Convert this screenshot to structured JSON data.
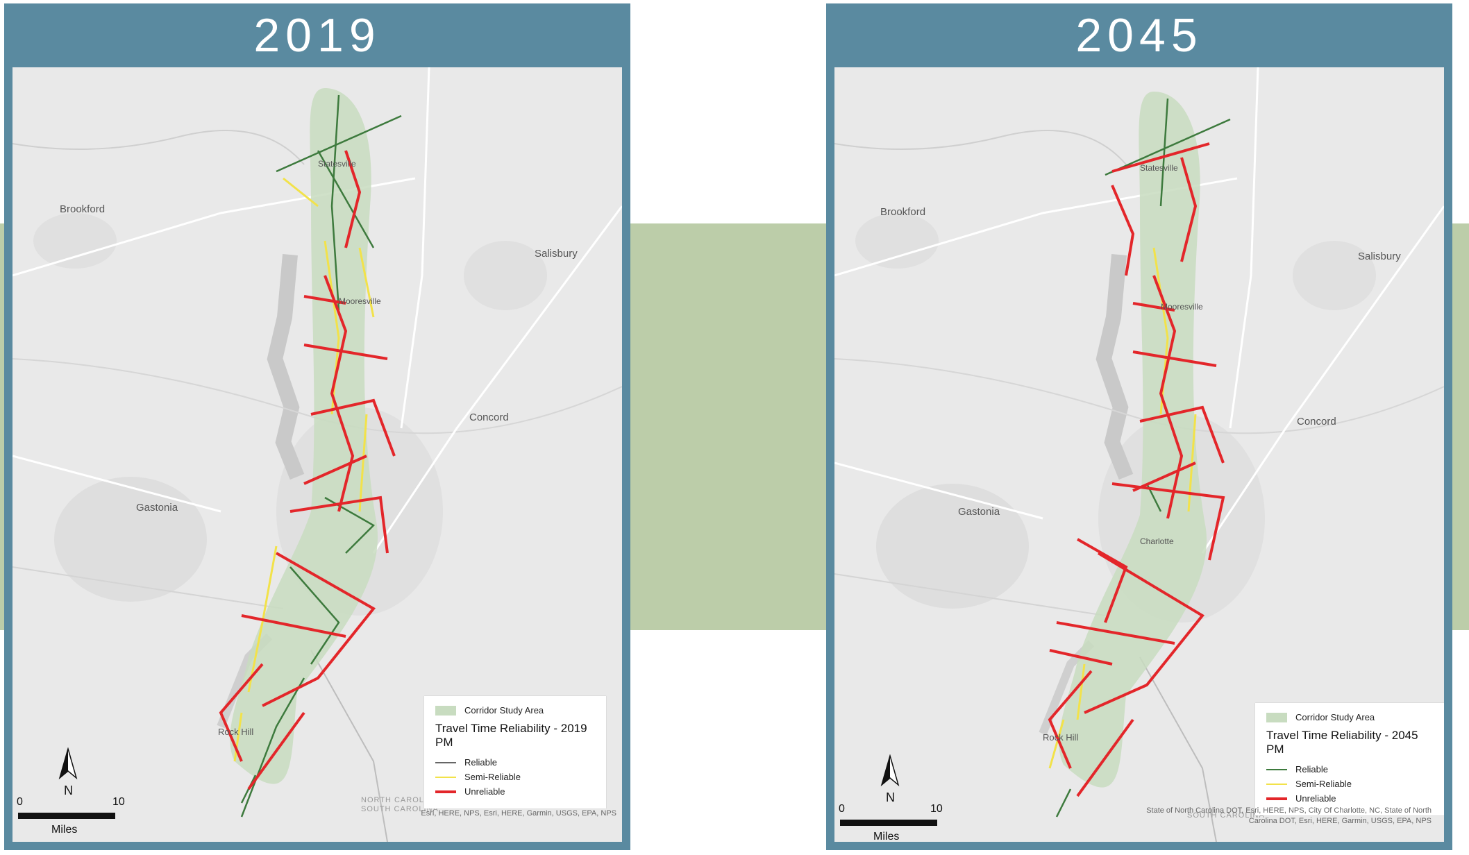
{
  "colors": {
    "frame": "#5a8aa0",
    "connector": "#bccda9",
    "corridor": "#c8dcc0",
    "reliable": "#3d7a3d",
    "semi_reliable": "#f2e24a",
    "unreliable": "#e3262a"
  },
  "panels": [
    {
      "title": "2019",
      "cities": {
        "brookford": "Brookford",
        "salisbury": "Salisbury",
        "concord": "Concord",
        "gastonia": "Gastonia",
        "statesville": "Statesville",
        "mooresville": "Mooresville",
        "rock_hill": "Rock Hill"
      },
      "legend": {
        "area_label": "Corridor Study Area",
        "title": "Travel Time Reliability - 2019 PM",
        "reliable": "Reliable",
        "semi_reliable": "Semi-Reliable",
        "unreliable": "Unreliable"
      },
      "north_label": "N",
      "scale": {
        "zero": "0",
        "ten": "10",
        "unit": "Miles"
      },
      "border": {
        "nc": "NORTH CAROLINA",
        "sc": "SOUTH CAROLINA"
      },
      "attribution": "Esri, HERE, NPS, Esri, HERE, Garmin, USGS, EPA, NPS"
    },
    {
      "title": "2045",
      "cities": {
        "brookford": "Brookford",
        "salisbury": "Salisbury",
        "concord": "Concord",
        "gastonia": "Gastonia",
        "statesville": "Statesville",
        "mooresville": "Mooresville",
        "rock_hill": "Rock Hill",
        "charlotte": "Charlotte"
      },
      "legend": {
        "area_label": "Corridor Study Area",
        "title": "Travel Time Reliability - 2045 PM",
        "reliable": "Reliable",
        "semi_reliable": "Semi-Reliable",
        "unreliable": "Unreliable"
      },
      "north_label": "N",
      "scale": {
        "zero": "0",
        "ten": "10",
        "unit": "Miles"
      },
      "border": {
        "sc": "SOUTH CAROLINA"
      },
      "attribution_line1": "State of North Carolina DOT, Esri, HERE, NPS, City Of Charlotte, NC, State of North",
      "attribution_line2": "Carolina DOT, Esri, HERE, Garmin, USGS, EPA, NPS"
    }
  ]
}
